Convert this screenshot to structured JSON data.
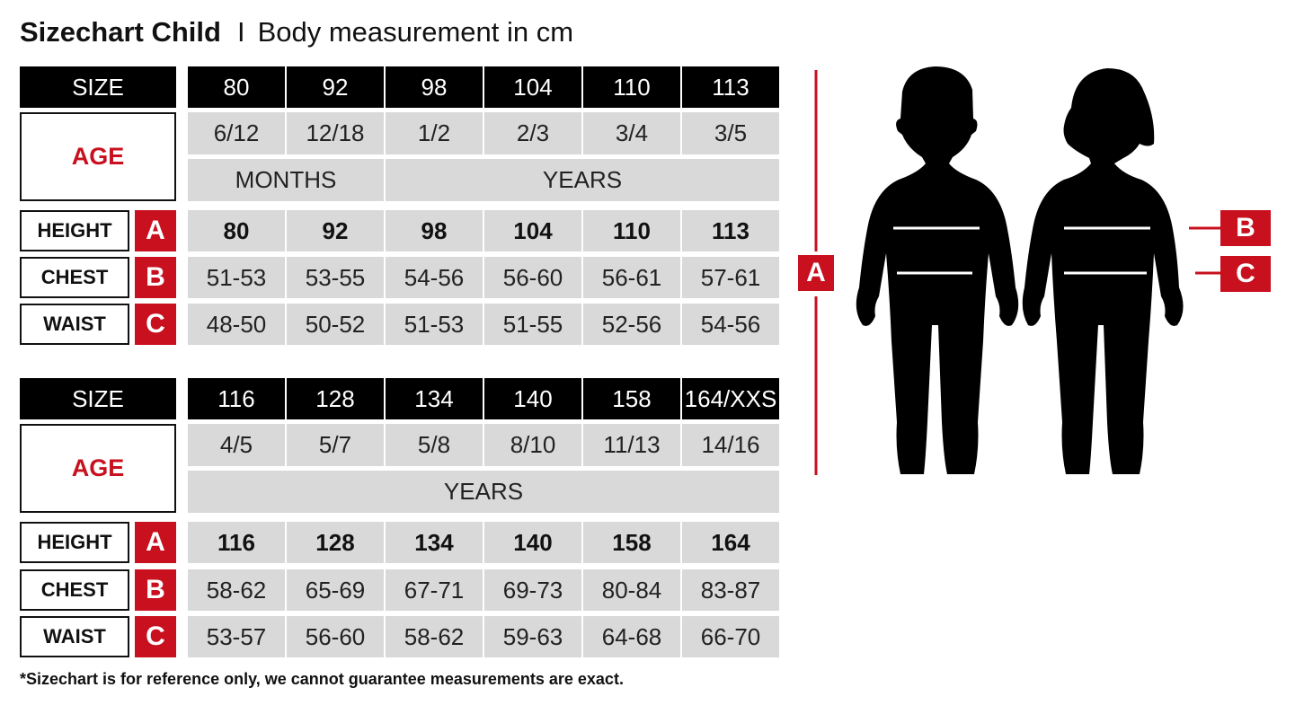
{
  "title": {
    "main": "Sizechart Child",
    "separator": "I",
    "subtitle": "Body measurement in cm"
  },
  "labels": {
    "size": "SIZE",
    "age": "AGE",
    "height": "HEIGHT",
    "chest": "CHEST",
    "waist": "WAIST",
    "letter_a": "A",
    "letter_b": "B",
    "letter_c": "C"
  },
  "tables": [
    {
      "sizes": [
        "80",
        "92",
        "98",
        "104",
        "110",
        "113"
      ],
      "ages": [
        "6/12",
        "12/18",
        "1/2",
        "2/3",
        "3/4",
        "3/5"
      ],
      "age_units": [
        {
          "label": "MONTHS",
          "span": 2
        },
        {
          "label": "YEARS",
          "span": 4
        }
      ],
      "height": [
        "80",
        "92",
        "98",
        "104",
        "110",
        "113"
      ],
      "chest": [
        "51-53",
        "53-55",
        "54-56",
        "56-60",
        "56-61",
        "57-61"
      ],
      "waist": [
        "48-50",
        "50-52",
        "51-53",
        "51-55",
        "52-56",
        "54-56"
      ]
    },
    {
      "sizes": [
        "116",
        "128",
        "134",
        "140",
        "158",
        "164/XXS"
      ],
      "ages": [
        "4/5",
        "5/7",
        "5/8",
        "8/10",
        "11/13",
        "14/16"
      ],
      "age_units": [
        {
          "label": "YEARS",
          "span": 6
        }
      ],
      "height": [
        "116",
        "128",
        "134",
        "140",
        "158",
        "164"
      ],
      "chest": [
        "58-62",
        "65-69",
        "67-71",
        "69-73",
        "80-84",
        "83-87"
      ],
      "waist": [
        "53-57",
        "56-60",
        "58-62",
        "59-63",
        "64-68",
        "66-70"
      ]
    }
  ],
  "footnote": "*Sizechart is for reference only, we cannot guarantee measurements are exact.",
  "colors": {
    "accent": "#c8101e",
    "header": "#000000",
    "cell": "#d9d9d9"
  },
  "figures": [
    "boy-silhouette",
    "girl-silhouette"
  ]
}
